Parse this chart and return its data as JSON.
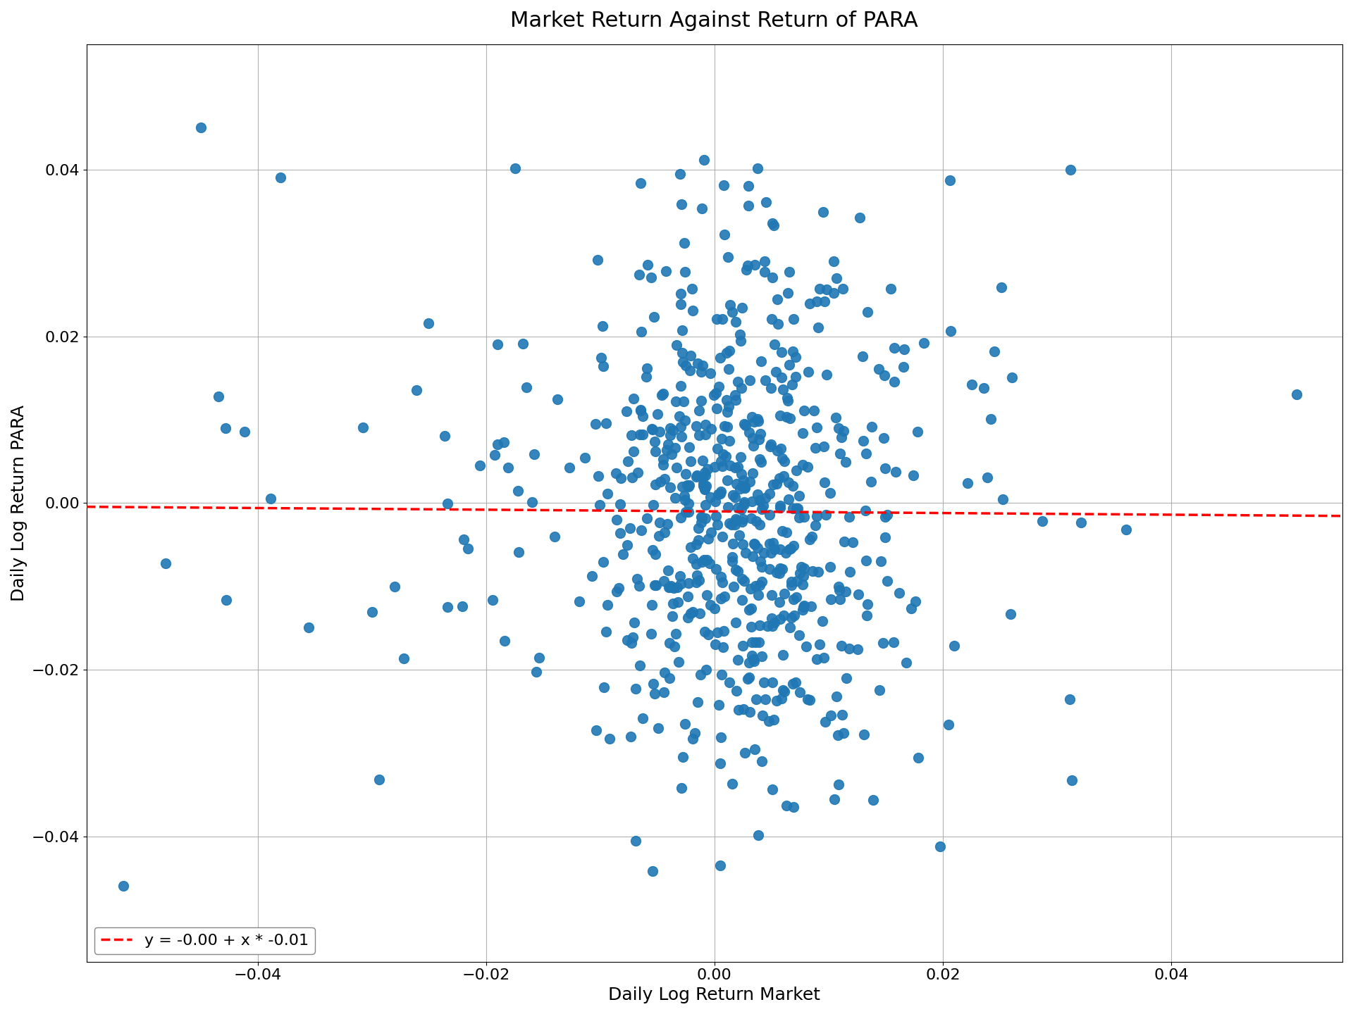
{
  "title": "Market Return Against Return of PARA",
  "xlabel": "Daily Log Return Market",
  "ylabel": "Daily Log Return PARA",
  "legend_label": "y = -0.00 + x * -0.01",
  "intercept": -0.001,
  "slope": -0.01,
  "scatter_color": "#1f77b4",
  "line_color": "red",
  "line_style": "--",
  "marker_size": 100,
  "xlim": [
    -0.055,
    0.055
  ],
  "ylim": [
    -0.055,
    0.055
  ],
  "seed": 42,
  "title_fontsize": 22,
  "label_fontsize": 18,
  "tick_fontsize": 16,
  "legend_fontsize": 16,
  "grid_color": "#aaaaaa",
  "grid_linewidth": 0.8
}
